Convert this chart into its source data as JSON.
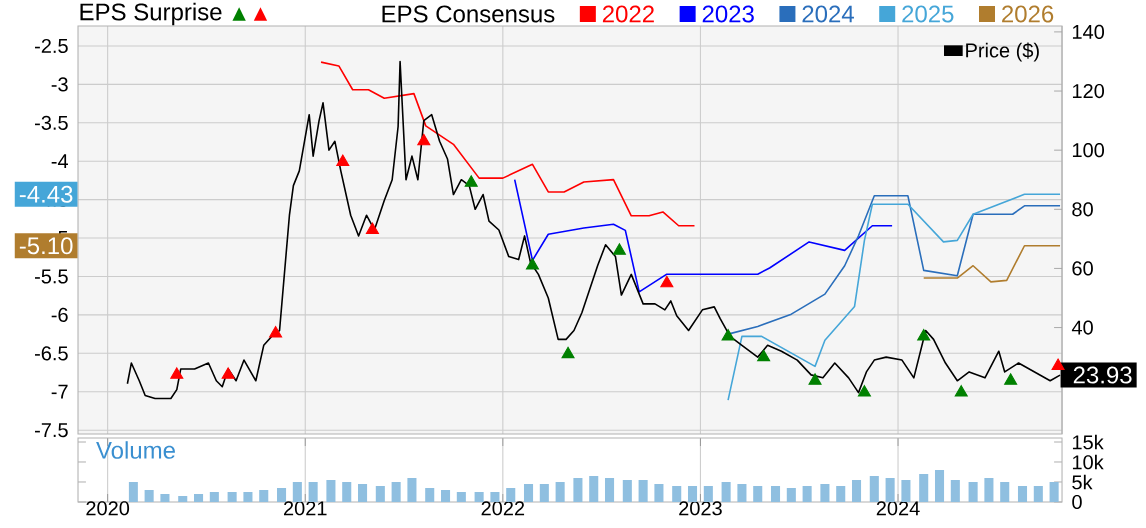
{
  "chart_data": [
    {
      "type": "line",
      "legend_title": "EPS Consensus",
      "legend": "top",
      "grid": true,
      "tick_labels": "y",
      "xlim": [
        2019.85,
        2024.83
      ],
      "xticks": [
        2020,
        2021,
        2022,
        2023,
        2024
      ],
      "ylim": [
        -7.55,
        -2.24
      ],
      "yticks": [
        -2.5,
        -3,
        -3.5,
        -4,
        -4.5,
        -5,
        -5.5,
        -6,
        -6.5,
        -7,
        -7.5
      ],
      "y2lim": [
        4,
        142
      ],
      "y2ticks": [
        40,
        60,
        80,
        100,
        120,
        140
      ],
      "annotations": [
        "EPS Surprise",
        {
          "text": "-4.43",
          "y": -4.43
        },
        {
          "text": "-5.10",
          "y": -5.1
        }
      ],
      "series": [
        {
          "name": "2022",
          "color": "#ff0000",
          "type": "line",
          "x": [
            2021.08,
            2021.17,
            2021.24,
            2021.32,
            2021.4,
            2021.55,
            2021.61,
            2021.75,
            2021.88,
            2022.0,
            2022.15,
            2022.23,
            2022.31,
            2022.41,
            2022.56,
            2022.65,
            2022.74,
            2022.81,
            2022.89,
            2022.97
          ],
          "values": [
            -2.71,
            -2.76,
            -3.07,
            -3.07,
            -3.18,
            -3.12,
            -3.54,
            -3.78,
            -4.22,
            -4.22,
            -4.04,
            -4.4,
            -4.4,
            -4.27,
            -4.24,
            -4.71,
            -4.71,
            -4.66,
            -4.84,
            -4.84
          ]
        },
        {
          "name": "2023",
          "color": "#0000ff",
          "type": "line",
          "x": [
            2022.06,
            2022.15,
            2022.23,
            2022.41,
            2022.56,
            2022.62,
            2022.69,
            2022.83,
            2023.29,
            2023.35,
            2023.55,
            2023.73,
            2023.87,
            2023.97
          ],
          "values": [
            -4.24,
            -5.29,
            -4.95,
            -4.87,
            -4.82,
            -4.9,
            -5.7,
            -5.47,
            -5.47,
            -5.39,
            -5.05,
            -5.16,
            -4.84,
            -4.84
          ]
        },
        {
          "name": "2024",
          "color": "#2a6ebb",
          "type": "line",
          "x": [
            2023.14,
            2023.29,
            2023.46,
            2023.63,
            2023.73,
            2023.8,
            2023.88,
            2024.05,
            2024.13,
            2024.3,
            2024.38,
            2024.58,
            2024.64,
            2024.82
          ],
          "values": [
            -6.25,
            -6.15,
            -5.99,
            -5.73,
            -5.36,
            -4.97,
            -4.45,
            -4.45,
            -5.42,
            -5.49,
            -4.69,
            -4.69,
            -4.58,
            -4.58
          ]
        },
        {
          "name": "2025",
          "color": "#45a6d8",
          "type": "line",
          "x": [
            2023.14,
            2023.21,
            2023.31,
            2023.58,
            2023.63,
            2023.78,
            2023.83,
            2023.87,
            2024.05,
            2024.23,
            2024.3,
            2024.38,
            2024.64,
            2024.82
          ],
          "values": [
            -7.11,
            -6.28,
            -6.28,
            -6.67,
            -6.33,
            -5.89,
            -5.03,
            -4.56,
            -4.56,
            -5.05,
            -5.03,
            -4.69,
            -4.43,
            -4.43
          ]
        },
        {
          "name": "2026",
          "color": "#b07d2e",
          "type": "line",
          "x": [
            2024.13,
            2024.3,
            2024.38,
            2024.47,
            2024.55,
            2024.64,
            2024.82
          ],
          "values": [
            -5.52,
            -5.52,
            -5.36,
            -5.57,
            -5.55,
            -5.1,
            -5.1
          ]
        },
        {
          "name": "Price ($)",
          "color": "#000000",
          "type": "line",
          "axis": "y2",
          "x": [
            2020.1,
            2020.12,
            2020.16,
            2020.19,
            2020.24,
            2020.32,
            2020.35,
            2020.37,
            2020.44,
            2020.51,
            2020.55,
            2020.58,
            2020.61,
            2020.65,
            2020.69,
            2020.75,
            2020.79,
            2020.83,
            2020.87,
            2020.92,
            2020.94,
            2020.97,
            2021.02,
            2021.04,
            2021.07,
            2021.09,
            2021.12,
            2021.15,
            2021.18,
            2021.23,
            2021.27,
            2021.31,
            2021.35,
            2021.4,
            2021.44,
            2021.47,
            2021.48,
            2021.51,
            2021.54,
            2021.57,
            2021.6,
            2021.64,
            2021.68,
            2021.72,
            2021.75,
            2021.79,
            2021.83,
            2021.86,
            2021.9,
            2021.93,
            2021.98,
            2022.03,
            2022.08,
            2022.11,
            2022.14,
            2022.18,
            2022.23,
            2022.28,
            2022.32,
            2022.36,
            2022.4,
            2022.48,
            2022.52,
            2022.57,
            2022.6,
            2022.65,
            2022.71,
            2022.77,
            2022.82,
            2022.85,
            2022.88,
            2022.94,
            2023.01,
            2023.07,
            2023.1,
            2023.15,
            2023.21,
            2023.29,
            2023.34,
            2023.41,
            2023.49,
            2023.56,
            2023.62,
            2023.68,
            2023.75,
            2023.8,
            2023.84,
            2023.88,
            2023.94,
            2024.02,
            2024.08,
            2024.14,
            2024.18,
            2024.24,
            2024.3,
            2024.36,
            2024.44,
            2024.51,
            2024.54,
            2024.61,
            2024.69,
            2024.77,
            2024.82
          ],
          "values": [
            21,
            28,
            22,
            17,
            16,
            16,
            19,
            26,
            26,
            28,
            22,
            20,
            26,
            22,
            29,
            22,
            34,
            37,
            39,
            78,
            88,
            93,
            112,
            98,
            110,
            116,
            100,
            103,
            93,
            78,
            71,
            78,
            73,
            83,
            90,
            108,
            130,
            90,
            98,
            90,
            110,
            112,
            103,
            97,
            85,
            90,
            88,
            80,
            85,
            76,
            73,
            64,
            63,
            71,
            62,
            58,
            50,
            36,
            36,
            39,
            45,
            61,
            68,
            64,
            51,
            58,
            48,
            48,
            46,
            49,
            44,
            39,
            46,
            47,
            43,
            37,
            34,
            30,
            34,
            32,
            29,
            24,
            23,
            28,
            23,
            18,
            25,
            29,
            30,
            29,
            23,
            39,
            36,
            28,
            22,
            25,
            23,
            32,
            25,
            28,
            25,
            22,
            23.93
          ],
          "value_labels": [
            null,
            null,
            null,
            null,
            null,
            null,
            null,
            null,
            null,
            null,
            null,
            null,
            null,
            null,
            null,
            null,
            null,
            null,
            null,
            null,
            null,
            null,
            null,
            null,
            null,
            null,
            null,
            null,
            null,
            null,
            null,
            null,
            null,
            null,
            null,
            null,
            null,
            null,
            null,
            null,
            null,
            null,
            null,
            null,
            null,
            null,
            null,
            null,
            null,
            null,
            null,
            null,
            null,
            null,
            null,
            null,
            null,
            null,
            null,
            null,
            null,
            null,
            null,
            null,
            null,
            null,
            null,
            null,
            null,
            null,
            null,
            null,
            null,
            null,
            null,
            null,
            null,
            null,
            null,
            null,
            null,
            null,
            null,
            null,
            null,
            null,
            null,
            null,
            null,
            null,
            null,
            null,
            null,
            null,
            null,
            null,
            null,
            null,
            null,
            null,
            null,
            null,
            "23.93"
          ]
        },
        {
          "color": "#008000",
          "type": "scatter",
          "axis": "y2",
          "marker": "triangle",
          "x": [
            2021.84,
            2022.15,
            2022.33,
            2022.59,
            2023.14,
            2023.32,
            2023.58,
            2023.83,
            2024.13,
            2024.32,
            2024.57
          ],
          "values": [
            89,
            61,
            31,
            66,
            37,
            30,
            22,
            18,
            37,
            18,
            22
          ]
        },
        {
          "color": "#ff0000",
          "type": "scatter",
          "axis": "y2",
          "marker": "triangle",
          "x": [
            2020.35,
            2020.61,
            2020.85,
            2021.19,
            2021.34,
            2021.6,
            2022.83,
            2024.81
          ],
          "values": [
            24,
            24,
            38,
            96,
            73,
            103,
            55,
            27
          ]
        }
      ]
    },
    {
      "type": "bar",
      "ylabel": "Volume",
      "grid": "x",
      "color": "#8fbfe0",
      "xlim": [
        2019.85,
        2024.83
      ],
      "xticks": [
        2020,
        2021,
        2022,
        2023,
        2024
      ],
      "ylim": [
        0,
        16000
      ],
      "yticks": [
        0,
        {
          "value": 5000,
          "label": "5k"
        },
        {
          "value": 10000,
          "label": "10k"
        },
        {
          "value": 15000,
          "label": "15k"
        }
      ],
      "x": [
        2020.13,
        2020.21,
        2020.29,
        2020.38,
        2020.46,
        2020.54,
        2020.63,
        2020.71,
        2020.79,
        2020.88,
        2020.96,
        2021.04,
        2021.13,
        2021.21,
        2021.29,
        2021.38,
        2021.46,
        2021.54,
        2021.63,
        2021.71,
        2021.79,
        2021.88,
        2021.96,
        2022.04,
        2022.13,
        2022.21,
        2022.29,
        2022.38,
        2022.46,
        2022.54,
        2022.63,
        2022.71,
        2022.79,
        2022.88,
        2022.96,
        2023.04,
        2023.13,
        2023.21,
        2023.29,
        2023.38,
        2023.46,
        2023.54,
        2023.63,
        2023.71,
        2023.79,
        2023.88,
        2023.96,
        2024.04,
        2024.13,
        2024.21,
        2024.29,
        2024.38,
        2024.46,
        2024.54,
        2024.63,
        2024.71,
        2024.79
      ],
      "values": [
        5000,
        3000,
        2000,
        1500,
        2000,
        2500,
        2500,
        2500,
        3000,
        3500,
        5000,
        5000,
        5500,
        5000,
        4500,
        4000,
        5000,
        6000,
        3500,
        3000,
        2500,
        2500,
        2500,
        3500,
        4500,
        4500,
        5000,
        6000,
        6500,
        6000,
        5500,
        5500,
        4500,
        4000,
        4000,
        4000,
        5000,
        4500,
        4000,
        4000,
        3500,
        4000,
        4500,
        4000,
        5500,
        6500,
        6000,
        5500,
        7000,
        8000,
        5500,
        5000,
        6000,
        5000,
        4000,
        4000,
        5000
      ]
    }
  ]
}
